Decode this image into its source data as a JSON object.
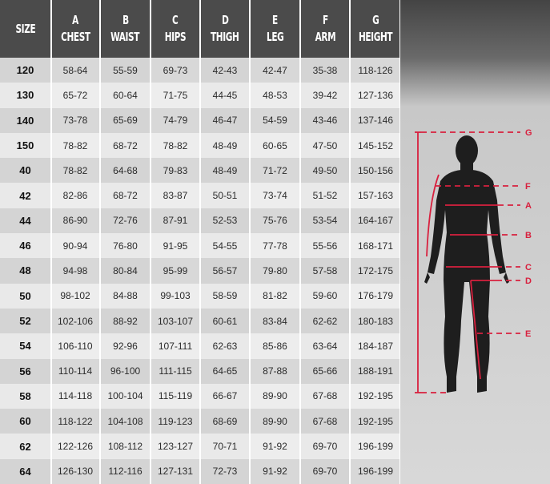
{
  "headers": [
    {
      "letter": "",
      "label": "SIZE"
    },
    {
      "letter": "A",
      "label": "CHEST"
    },
    {
      "letter": "B",
      "label": "WAIST"
    },
    {
      "letter": "C",
      "label": "HIPS"
    },
    {
      "letter": "D",
      "label": "THIGH"
    },
    {
      "letter": "E",
      "label": "LEG"
    },
    {
      "letter": "F",
      "label": "ARM"
    },
    {
      "letter": "G",
      "label": "HEIGHT"
    }
  ],
  "rows": [
    [
      "120",
      "58-64",
      "55-59",
      "69-73",
      "42-43",
      "42-47",
      "35-38",
      "118-126"
    ],
    [
      "130",
      "65-72",
      "60-64",
      "71-75",
      "44-45",
      "48-53",
      "39-42",
      "127-136"
    ],
    [
      "140",
      "73-78",
      "65-69",
      "74-79",
      "46-47",
      "54-59",
      "43-46",
      "137-146"
    ],
    [
      "150",
      "78-82",
      "68-72",
      "78-82",
      "48-49",
      "60-65",
      "47-50",
      "145-152"
    ],
    [
      "40",
      "78-82",
      "64-68",
      "79-83",
      "48-49",
      "71-72",
      "49-50",
      "150-156"
    ],
    [
      "42",
      "82-86",
      "68-72",
      "83-87",
      "50-51",
      "73-74",
      "51-52",
      "157-163"
    ],
    [
      "44",
      "86-90",
      "72-76",
      "87-91",
      "52-53",
      "75-76",
      "53-54",
      "164-167"
    ],
    [
      "46",
      "90-94",
      "76-80",
      "91-95",
      "54-55",
      "77-78",
      "55-56",
      "168-171"
    ],
    [
      "48",
      "94-98",
      "80-84",
      "95-99",
      "56-57",
      "79-80",
      "57-58",
      "172-175"
    ],
    [
      "50",
      "98-102",
      "84-88",
      "99-103",
      "58-59",
      "81-82",
      "59-60",
      "176-179"
    ],
    [
      "52",
      "102-106",
      "88-92",
      "103-107",
      "60-61",
      "83-84",
      "62-62",
      "180-183"
    ],
    [
      "54",
      "106-110",
      "92-96",
      "107-111",
      "62-63",
      "85-86",
      "63-64",
      "184-187"
    ],
    [
      "56",
      "110-114",
      "96-100",
      "111-115",
      "64-65",
      "87-88",
      "65-66",
      "188-191"
    ],
    [
      "58",
      "114-118",
      "100-104",
      "115-119",
      "66-67",
      "89-90",
      "67-68",
      "192-195"
    ],
    [
      "60",
      "118-122",
      "104-108",
      "119-123",
      "68-69",
      "89-90",
      "67-68",
      "192-195"
    ],
    [
      "62",
      "122-126",
      "108-112",
      "123-127",
      "70-71",
      "91-92",
      "69-70",
      "196-199"
    ],
    [
      "64",
      "126-130",
      "112-116",
      "127-131",
      "72-73",
      "91-92",
      "69-70",
      "196-199"
    ]
  ],
  "figure": {
    "labels": [
      "G",
      "F",
      "A",
      "B",
      "C",
      "D",
      "E"
    ],
    "line_color": "#d8203e",
    "silhouette_color": "#1e1e1e"
  },
  "colors": {
    "header_bg": "#4b4b4b",
    "row_dark": "#d4d4d4",
    "row_light": "#e9e9e9"
  }
}
